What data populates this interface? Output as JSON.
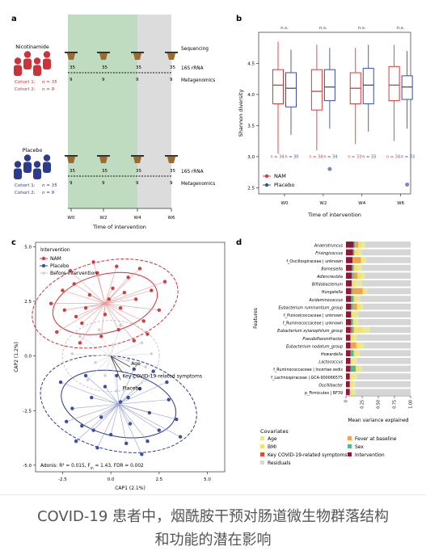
{
  "panel_labels": {
    "a": "a",
    "b": "b",
    "c": "c",
    "d": "d"
  },
  "panel_a": {
    "groups": {
      "nam": {
        "name": "Nicotinamide",
        "cohort1": "Cohort 1:",
        "cohort1_n": "n = 35",
        "cohort2": "Cohort 2:",
        "cohort2_n": "n = 9"
      },
      "placebo": {
        "name": "Placebo",
        "cohort1": "Cohort 1:",
        "cohort1_n": "n = 35",
        "cohort2": "Cohort 2:",
        "cohort2_n": "n = 9"
      }
    },
    "sequencing": "Sequencing",
    "rrna": "16S rRNA",
    "metagenomics": "Metagenomics",
    "nam_counts_top": [
      "35",
      "35",
      "35",
      "35"
    ],
    "nam_counts_bottom": [
      "9",
      "9",
      "9",
      "9"
    ],
    "placebo_counts_top": [
      "35",
      "35",
      "35",
      "35"
    ],
    "placebo_counts_bottom": [
      "9",
      "9",
      "9",
      "9"
    ],
    "weeks": [
      "W0",
      "W2",
      "W4",
      "W6"
    ],
    "xlabel": "Time of intervention",
    "colors": {
      "nam": "#c9343b",
      "placebo": "#2d3b8c",
      "green": "#bfdcc1",
      "grey": "#dcdcdc"
    }
  },
  "chart_data": [
    {
      "type": "box",
      "panel": "b",
      "ylabel": "Shannon diversity",
      "xlabel": "Time of intervention",
      "categories": [
        "W0",
        "W2",
        "W4",
        "W6"
      ],
      "ylim": [
        2.4,
        5.0
      ],
      "yticks": [
        "2.5",
        "3.0",
        "3.5",
        "4.0",
        "4.5"
      ],
      "significance": [
        "n.s.",
        "n.s.",
        "n.s.",
        "n.s."
      ],
      "n_labels": [
        [
          "n = 34",
          "n = 30"
        ],
        [
          "n = 34",
          "n = 34"
        ],
        [
          "n = 33",
          "n = 33"
        ],
        [
          "n = 34",
          "n = 33"
        ]
      ],
      "series": [
        {
          "name": "NAM",
          "color": "#d43d3d",
          "boxes": [
            [
              3.05,
              3.85,
              4.15,
              4.4,
              4.85
            ],
            [
              3.1,
              3.75,
              4.05,
              4.4,
              4.8
            ],
            [
              3.2,
              3.85,
              4.1,
              4.35,
              4.75
            ],
            [
              3.25,
              3.9,
              4.15,
              4.45,
              4.8
            ]
          ],
          "outliers": [
            [],
            [],
            [],
            []
          ]
        },
        {
          "name": "Placebo",
          "color": "#3a4fa3",
          "boxes": [
            [
              3.35,
              3.8,
              4.1,
              4.35,
              4.72
            ],
            [
              3.45,
              3.9,
              4.12,
              4.4,
              4.75
            ],
            [
              3.4,
              3.85,
              4.15,
              4.42,
              4.8
            ],
            [
              3.45,
              3.92,
              4.12,
              4.3,
              4.7
            ]
          ],
          "outliers": [
            [],
            [
              2.8
            ],
            [],
            [
              2.55
            ]
          ]
        }
      ],
      "legend": "bottom-left"
    },
    {
      "type": "scatter",
      "panel": "c",
      "xlabel": "CAP1 (2.1%)",
      "ylabel": "CAP2 (1.2%)",
      "xlim": [
        -3.9,
        5.9
      ],
      "ylim": [
        -5.3,
        5.2
      ],
      "xticks": [
        "-2.5",
        "0.0",
        "2.5",
        "5.0"
      ],
      "yticks": [
        "-5.0",
        "-2.5",
        "0.0",
        "2.5",
        "5.0"
      ],
      "legend_title": "Intervention",
      "legend": [
        "NAM",
        "Placebo",
        "Before intervention"
      ],
      "arrows": [
        "Age",
        "Key COVID-19-related symptoms",
        "Placebo"
      ],
      "stats_prefix": "Adonis: R² = 0.015, F",
      "stats_sub": "m",
      "stats_suffix": " = 1.43, FDR = 0.002",
      "centroids": {
        "nam": [
          -0.3,
          2.4
        ],
        "placebo": [
          0.4,
          -2.2
        ],
        "before": [
          0.0,
          0.0
        ]
      },
      "nam_points": [
        [
          -2.4,
          2.1
        ],
        [
          -1.9,
          3.3
        ],
        [
          -1.5,
          1.5
        ],
        [
          -1.1,
          2.8
        ],
        [
          -0.7,
          3.8
        ],
        [
          -0.3,
          1.9
        ],
        [
          0.1,
          3.1
        ],
        [
          0.5,
          2.2
        ],
        [
          0.9,
          3.6
        ],
        [
          1.3,
          2.6
        ],
        [
          1.7,
          1.6
        ],
        [
          2.1,
          3.0
        ],
        [
          -2.8,
          1.1
        ],
        [
          -1.6,
          0.6
        ],
        [
          -0.5,
          0.9
        ],
        [
          0.4,
          1.2
        ],
        [
          1.2,
          0.7
        ],
        [
          -2.1,
          3.9
        ],
        [
          -0.9,
          4.3
        ],
        [
          0.3,
          4.1
        ],
        [
          1.5,
          4.0
        ],
        [
          2.5,
          2.1
        ],
        [
          -1.3,
          2.2
        ],
        [
          0.7,
          2.9
        ],
        [
          -0.1,
          2.6
        ],
        [
          -2.5,
          3.0
        ],
        [
          -3.1,
          2.4
        ],
        [
          2.8,
          3.4
        ],
        [
          1.9,
          1.0
        ],
        [
          -1.8,
          1.8
        ]
      ],
      "placebo_points": [
        [
          -2.6,
          -1.2
        ],
        [
          -2.0,
          -2.4
        ],
        [
          -1.5,
          -3.2
        ],
        [
          -1.0,
          -1.9
        ],
        [
          -0.5,
          -2.8
        ],
        [
          0.0,
          -3.6
        ],
        [
          0.5,
          -2.1
        ],
        [
          1.0,
          -3.1
        ],
        [
          1.5,
          -1.5
        ],
        [
          2.0,
          -2.6
        ],
        [
          2.5,
          -3.4
        ],
        [
          3.0,
          -2.0
        ],
        [
          -1.8,
          -3.9
        ],
        [
          -0.7,
          -4.2
        ],
        [
          0.8,
          -4.0
        ],
        [
          1.9,
          -3.9
        ],
        [
          2.9,
          -1.2
        ],
        [
          3.4,
          -2.9
        ],
        [
          -0.3,
          -1.4
        ],
        [
          0.3,
          -0.9
        ],
        [
          1.2,
          -0.6
        ],
        [
          -1.3,
          -0.9
        ],
        [
          2.2,
          -0.7
        ],
        [
          -2.3,
          -3.0
        ],
        [
          3.6,
          -3.7
        ],
        [
          0.9,
          -1.9
        ],
        [
          -0.9,
          -3.4
        ],
        [
          1.6,
          -4.5
        ]
      ],
      "before_points": [
        [
          -1.6,
          0.9
        ],
        [
          -0.8,
          -0.3
        ],
        [
          0.1,
          0.5
        ],
        [
          0.9,
          -0.2
        ],
        [
          1.6,
          0.6
        ],
        [
          -1.2,
          -1.1
        ],
        [
          0.5,
          1.4
        ],
        [
          -0.3,
          -0.9
        ],
        [
          1.2,
          -1.0
        ],
        [
          2.1,
          0.1
        ],
        [
          -2.0,
          0.1
        ],
        [
          0.3,
          -1.6
        ],
        [
          -0.6,
          1.2
        ],
        [
          1.8,
          -0.5
        ]
      ]
    },
    {
      "type": "stacked_bar",
      "panel": "d",
      "ylabel": "Features",
      "xlabel": "Mean variance explained",
      "xlim": [
        0,
        1
      ],
      "xticks": [
        "0",
        "0.25",
        "0.50",
        "0.75",
        "1.00"
      ],
      "features": [
        "Anaerotruncus",
        "Frisingicoccus",
        "f_Oscillospiraceae | unknown",
        "Barnesiella",
        "Adlercreutzia",
        "Bifidobacterium",
        "Hungatella",
        "Acidaminococcus",
        "Eubacterium ruminantium_group",
        "f_Puniceicoccaceae | unknown",
        "f_Ruminococcaceae | unknown",
        "Eubacterium xylanophilum_group",
        "Pseudoflavonifractor",
        "Eubacterium nodatum_group",
        "Howardella",
        "Lactococcus",
        "f_Ruminococcaceae | Incertae sedis",
        "f_Lachnospiraceae | GCA-900066575",
        "Oscillibacter",
        "p_Firmicutes | RF39"
      ],
      "italic": [
        true,
        true,
        false,
        true,
        true,
        true,
        true,
        true,
        true,
        false,
        false,
        true,
        true,
        true,
        true,
        true,
        false,
        false,
        true,
        false
      ],
      "categories": [
        "Intervention",
        "Key COVID-19-related symptoms",
        "Sex",
        "Fever at baseline",
        "BMI",
        "Age",
        "Residuals"
      ],
      "colors": {
        "Intervention": "#8b1a3a",
        "Key COVID-19-related symptoms": "#d9502f",
        "Sex": "#5db58b",
        "Fever at baseline": "#f0a24c",
        "BMI": "#f6e26a",
        "Age": "#e3ea9a",
        "Residuals": "#d6d6d6"
      },
      "values": [
        [
          0.12,
          0.0,
          0.02,
          0.05,
          0.05,
          0.06
        ],
        [
          0.11,
          0.0,
          0.02,
          0.0,
          0.08,
          0.04
        ],
        [
          0.1,
          0.0,
          0.0,
          0.13,
          0.03,
          0.05
        ],
        [
          0.09,
          0.01,
          0.02,
          0.0,
          0.06,
          0.07
        ],
        [
          0.09,
          0.0,
          0.03,
          0.06,
          0.06,
          0.05
        ],
        [
          0.09,
          0.0,
          0.0,
          0.0,
          0.05,
          0.1
        ],
        [
          0.08,
          0.0,
          0.02,
          0.16,
          0.04,
          0.03
        ],
        [
          0.08,
          0.0,
          0.04,
          0.0,
          0.05,
          0.05
        ],
        [
          0.08,
          0.0,
          0.03,
          0.06,
          0.05,
          0.04
        ],
        [
          0.08,
          0.0,
          0.0,
          0.0,
          0.05,
          0.06
        ],
        [
          0.08,
          0.0,
          0.03,
          0.0,
          0.04,
          0.05
        ],
        [
          0.07,
          0.02,
          0.03,
          0.0,
          0.14,
          0.11
        ],
        [
          0.07,
          0.0,
          0.0,
          0.0,
          0.05,
          0.05
        ],
        [
          0.07,
          0.0,
          0.0,
          0.09,
          0.05,
          0.07
        ],
        [
          0.07,
          0.0,
          0.05,
          0.0,
          0.04,
          0.05
        ],
        [
          0.07,
          0.0,
          0.0,
          0.0,
          0.04,
          0.06
        ],
        [
          0.07,
          0.0,
          0.08,
          0.0,
          0.05,
          0.04
        ],
        [
          0.06,
          0.0,
          0.0,
          0.0,
          0.05,
          0.06
        ],
        [
          0.06,
          0.0,
          0.0,
          0.0,
          0.04,
          0.05
        ],
        [
          0.06,
          0.0,
          0.0,
          0.0,
          0.04,
          0.05
        ]
      ],
      "legend_title": "Covariates",
      "legend_order": [
        "Age",
        "Fever at baseline",
        "BMI",
        "Sex",
        "Key COVID-19-related symptoms",
        "Intervention",
        "Residuals"
      ]
    }
  ],
  "caption": {
    "line1": "COVID-19 患者中，烟酰胺干预对肠道微生物群落结构",
    "line2": "和功能的潜在影响"
  }
}
